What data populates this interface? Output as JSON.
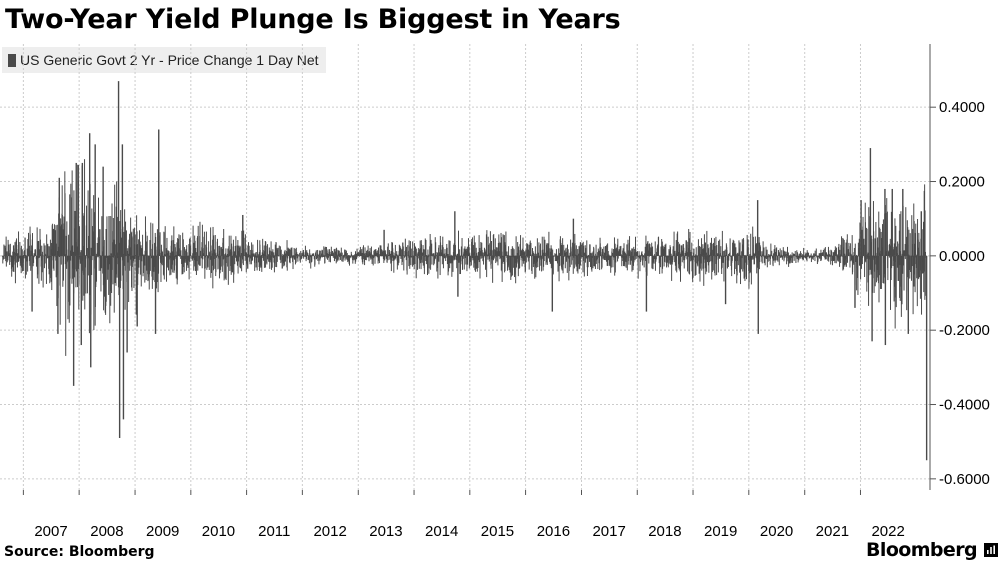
{
  "title": "Two-Year Yield Plunge Is Biggest in Years",
  "source": "Source: Bloomberg",
  "brand": "Bloomberg",
  "brand_icon": "bloomberg-chart-icon",
  "colors": {
    "series": "#4a4a4a",
    "grid": "#cccccc",
    "axis": "#555555",
    "legend_bg": "#eeeeee"
  },
  "chart_data": {
    "type": "bar",
    "title": "Two-Year Yield Plunge Is Biggest in Years",
    "xlabel": "",
    "ylabel": "",
    "y_axis_side": "right",
    "grid": true,
    "legend_placement": "top-left",
    "ylim": [
      -0.63,
      0.57
    ],
    "y_ticks": [
      0.4,
      0.2,
      0.0,
      -0.2,
      -0.4,
      -0.6
    ],
    "y_tick_labels": [
      "0.4000",
      "0.2000",
      "0.0000",
      "-0.2000",
      "-0.4000",
      "-0.6000"
    ],
    "x_tick_labels": [
      "2007",
      "2008",
      "2009",
      "2010",
      "2011",
      "2012",
      "2013",
      "2014",
      "2015",
      "2016",
      "2017",
      "2018",
      "2019",
      "2020",
      "2021",
      "2022"
    ],
    "series": [
      {
        "name": "US Generic Govt 2 Yr - Price Change 1 Day Net",
        "frequency": "daily",
        "range_profile": [
          [
            "2007-01",
            0.05
          ],
          [
            "2007-06",
            0.07
          ],
          [
            "2007-09",
            0.18
          ],
          [
            "2008-01",
            0.2
          ],
          [
            "2008-06",
            0.16
          ],
          [
            "2008-10",
            0.14
          ],
          [
            "2009-03",
            0.09
          ],
          [
            "2009-09",
            0.06
          ],
          [
            "2010-05",
            0.07
          ],
          [
            "2011-01",
            0.05
          ],
          [
            "2011-09",
            0.03
          ],
          [
            "2012-06",
            0.02
          ],
          [
            "2013-01",
            0.02
          ],
          [
            "2013-09",
            0.04
          ],
          [
            "2014-06",
            0.05
          ],
          [
            "2015-06",
            0.055
          ],
          [
            "2016-06",
            0.05
          ],
          [
            "2017-06",
            0.04
          ],
          [
            "2018-06",
            0.045
          ],
          [
            "2019-06",
            0.06
          ],
          [
            "2020-01",
            0.07
          ],
          [
            "2020-04",
            0.03
          ],
          [
            "2021-01",
            0.015
          ],
          [
            "2021-06",
            0.02
          ],
          [
            "2021-10",
            0.05
          ],
          [
            "2022-01",
            0.1
          ],
          [
            "2022-06",
            0.14
          ],
          [
            "2023-02",
            0.13
          ]
        ],
        "notable_moves": [
          [
            "2007-02-27",
            -0.15
          ],
          [
            "2007-08-15",
            -0.21
          ],
          [
            "2007-08-24",
            0.21
          ],
          [
            "2007-11-26",
            -0.35
          ],
          [
            "2007-12-13",
            0.25
          ],
          [
            "2008-01-15",
            -0.24
          ],
          [
            "2008-01-22",
            0.25
          ],
          [
            "2008-03-10",
            0.33
          ],
          [
            "2008-03-17",
            -0.3
          ],
          [
            "2008-04-15",
            0.3
          ],
          [
            "2008-06-06",
            0.24
          ],
          [
            "2008-09-15",
            0.47
          ],
          [
            "2008-09-22",
            -0.49
          ],
          [
            "2008-10-10",
            0.3
          ],
          [
            "2008-10-17",
            -0.44
          ],
          [
            "2008-11-10",
            -0.26
          ],
          [
            "2009-01-15",
            -0.19
          ],
          [
            "2009-05-15",
            -0.21
          ],
          [
            "2009-06-05",
            0.34
          ],
          [
            "2010-12-07",
            0.11
          ],
          [
            "2013-06-19",
            0.07
          ],
          [
            "2014-09-25",
            0.12
          ],
          [
            "2014-10-15",
            -0.11
          ],
          [
            "2016-06-24",
            -0.15
          ],
          [
            "2016-11-09",
            0.1
          ],
          [
            "2018-03-02",
            -0.15
          ],
          [
            "2019-08-02",
            -0.13
          ],
          [
            "2020-02-28",
            0.15
          ],
          [
            "2020-03-03",
            -0.21
          ],
          [
            "2021-11-26",
            -0.14
          ],
          [
            "2022-01-05",
            0.15
          ],
          [
            "2022-03-07",
            0.29
          ],
          [
            "2022-03-18",
            -0.23
          ],
          [
            "2022-06-10",
            0.18
          ],
          [
            "2022-06-13",
            -0.24
          ],
          [
            "2022-07-28",
            0.18
          ],
          [
            "2022-10-05",
            0.18
          ],
          [
            "2022-11-10",
            -0.21
          ],
          [
            "2023-02-03",
            0.12
          ],
          [
            "2023-03-10",
            -0.55
          ]
        ]
      }
    ]
  }
}
